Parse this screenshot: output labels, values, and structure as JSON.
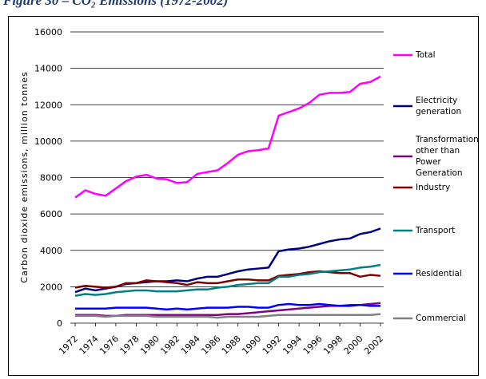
{
  "chart_data": {
    "type": "line",
    "title": "Figure 30 – CO₂ Emissions (1972-2002)",
    "y_label": "Carbon dioxide emissions, million tonnes",
    "x": [
      1972,
      1973,
      1974,
      1975,
      1976,
      1977,
      1978,
      1979,
      1980,
      1981,
      1982,
      1983,
      1984,
      1985,
      1986,
      1987,
      1988,
      1989,
      1990,
      1991,
      1992,
      1993,
      1994,
      1995,
      1996,
      1997,
      1998,
      1999,
      2000,
      2001,
      2002
    ],
    "xlim": [
      1972,
      2002
    ],
    "xticks": [
      1972,
      1974,
      1976,
      1978,
      1980,
      1982,
      1984,
      1986,
      1988,
      1990,
      1992,
      1994,
      1996,
      1998,
      2000,
      2002
    ],
    "ylim": [
      0,
      16000
    ],
    "yticks": [
      0,
      2000,
      4000,
      6000,
      8000,
      10000,
      12000,
      14000,
      16000
    ],
    "grid": true,
    "legend": "right",
    "series": [
      {
        "name": "Total",
        "color": "#ff00ff",
        "values": [
          6900,
          7300,
          7100,
          7000,
          7400,
          7800,
          8050,
          8150,
          7950,
          7900,
          7700,
          7750,
          8200,
          8300,
          8400,
          8800,
          9250,
          9450,
          9500,
          9600,
          11400,
          11600,
          11800,
          12100,
          12550,
          12650,
          12650,
          12700,
          13150,
          13250,
          13550
        ]
      },
      {
        "name": "Electricity generation",
        "color": "#000080",
        "values": [
          1700,
          1900,
          1800,
          1900,
          2000,
          2150,
          2200,
          2250,
          2300,
          2300,
          2350,
          2300,
          2450,
          2550,
          2550,
          2700,
          2850,
          2950,
          3000,
          3050,
          3950,
          4050,
          4100,
          4200,
          4350,
          4500,
          4600,
          4650,
          4900,
          5000,
          5200
        ]
      },
      {
        "name": "Transformation other than Power Generation",
        "color": "#800080",
        "values": [
          450,
          450,
          450,
          400,
          400,
          450,
          450,
          450,
          450,
          450,
          450,
          450,
          450,
          450,
          450,
          500,
          500,
          550,
          600,
          650,
          700,
          750,
          800,
          850,
          900,
          950,
          950,
          1000,
          1000,
          1050,
          1100
        ]
      },
      {
        "name": "Industry",
        "color": "#800000",
        "values": [
          1950,
          2050,
          2000,
          1950,
          2000,
          2200,
          2200,
          2350,
          2300,
          2250,
          2200,
          2100,
          2250,
          2200,
          2200,
          2300,
          2400,
          2400,
          2350,
          2350,
          2600,
          2650,
          2700,
          2800,
          2850,
          2800,
          2750,
          2750,
          2550,
          2650,
          2600
        ]
      },
      {
        "name": "Transport",
        "color": "#008080",
        "values": [
          1500,
          1600,
          1550,
          1600,
          1700,
          1750,
          1800,
          1800,
          1750,
          1750,
          1750,
          1800,
          1850,
          1850,
          1950,
          2000,
          2100,
          2150,
          2200,
          2200,
          2550,
          2550,
          2650,
          2700,
          2800,
          2850,
          2900,
          2950,
          3050,
          3100,
          3200
        ]
      },
      {
        "name": "Residential",
        "color": "#0000ff",
        "values": [
          800,
          800,
          800,
          800,
          850,
          850,
          850,
          850,
          800,
          750,
          800,
          750,
          800,
          850,
          850,
          850,
          900,
          900,
          850,
          850,
          1000,
          1050,
          1000,
          1000,
          1050,
          1000,
          950,
          950,
          1000,
          950,
          950
        ]
      },
      {
        "name": "Commercial",
        "color": "#808080",
        "values": [
          400,
          400,
          400,
          350,
          400,
          400,
          400,
          400,
          350,
          350,
          350,
          350,
          350,
          350,
          300,
          350,
          350,
          350,
          350,
          400,
          450,
          450,
          450,
          450,
          450,
          450,
          450,
          450,
          450,
          450,
          500
        ]
      }
    ]
  }
}
